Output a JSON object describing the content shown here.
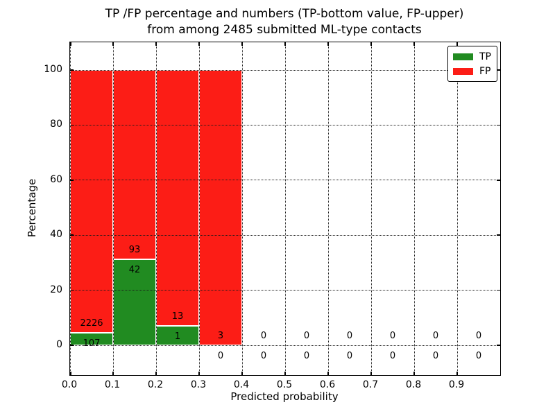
{
  "title": {
    "line1": "TP /FP percentage and numbers (TP-bottom value, FP-upper)",
    "line2": "from among 2485 submitted ML-type contacts"
  },
  "chart_data": {
    "type": "bar",
    "stacked": true,
    "title": "TP /FP percentage and numbers (TP-bottom value, FP-upper)\nfrom among 2485 submitted ML-type contacts",
    "xlabel": "Predicted probability",
    "ylabel": "Percentage",
    "total_contacts": 2485,
    "xlim": [
      0.0,
      1.0
    ],
    "ylim": [
      -10.8,
      110.1
    ],
    "x_ticks": [
      "0.0",
      "0.1",
      "0.2",
      "0.3",
      "0.4",
      "0.5",
      "0.6",
      "0.7",
      "0.8",
      "0.9"
    ],
    "y_ticks": [
      0,
      20,
      40,
      60,
      80,
      100
    ],
    "grid": "dotted, drawn above bars",
    "bin_width": 0.1,
    "bins": [
      {
        "range": "0.0-0.1",
        "tp": 107,
        "fp": 2226,
        "tp_pct": 4.59,
        "fp_pct": 95.41
      },
      {
        "range": "0.1-0.2",
        "tp": 42,
        "fp": 93,
        "tp_pct": 31.11,
        "fp_pct": 68.89
      },
      {
        "range": "0.2-0.3",
        "tp": 1,
        "fp": 13,
        "tp_pct": 7.14,
        "fp_pct": 92.86
      },
      {
        "range": "0.3-0.4",
        "tp": 0,
        "fp": 3,
        "tp_pct": 0.0,
        "fp_pct": 100.0
      },
      {
        "range": "0.4-0.5",
        "tp": 0,
        "fp": 0,
        "tp_pct": null,
        "fp_pct": null
      },
      {
        "range": "0.5-0.6",
        "tp": 0,
        "fp": 0,
        "tp_pct": null,
        "fp_pct": null
      },
      {
        "range": "0.6-0.7",
        "tp": 0,
        "fp": 0,
        "tp_pct": null,
        "fp_pct": null
      },
      {
        "range": "0.7-0.8",
        "tp": 0,
        "fp": 0,
        "tp_pct": null,
        "fp_pct": null
      },
      {
        "range": "0.8-0.9",
        "tp": 0,
        "fp": 0,
        "tp_pct": null,
        "fp_pct": null
      },
      {
        "range": "0.9-1.0",
        "tp": 0,
        "fp": 0,
        "tp_pct": null,
        "fp_pct": null
      }
    ],
    "legend": [
      {
        "label": "TP",
        "color": "#218b21"
      },
      {
        "label": "FP",
        "color": "#fc1d16"
      }
    ],
    "legend_position": "upper right"
  },
  "colors": {
    "tp": "#218b21",
    "fp": "#fc1d16",
    "bar_edge": "#ffffff",
    "grid": "#1a1a1a",
    "frame": "#000000",
    "background": "#ffffff",
    "text": "#000000"
  }
}
